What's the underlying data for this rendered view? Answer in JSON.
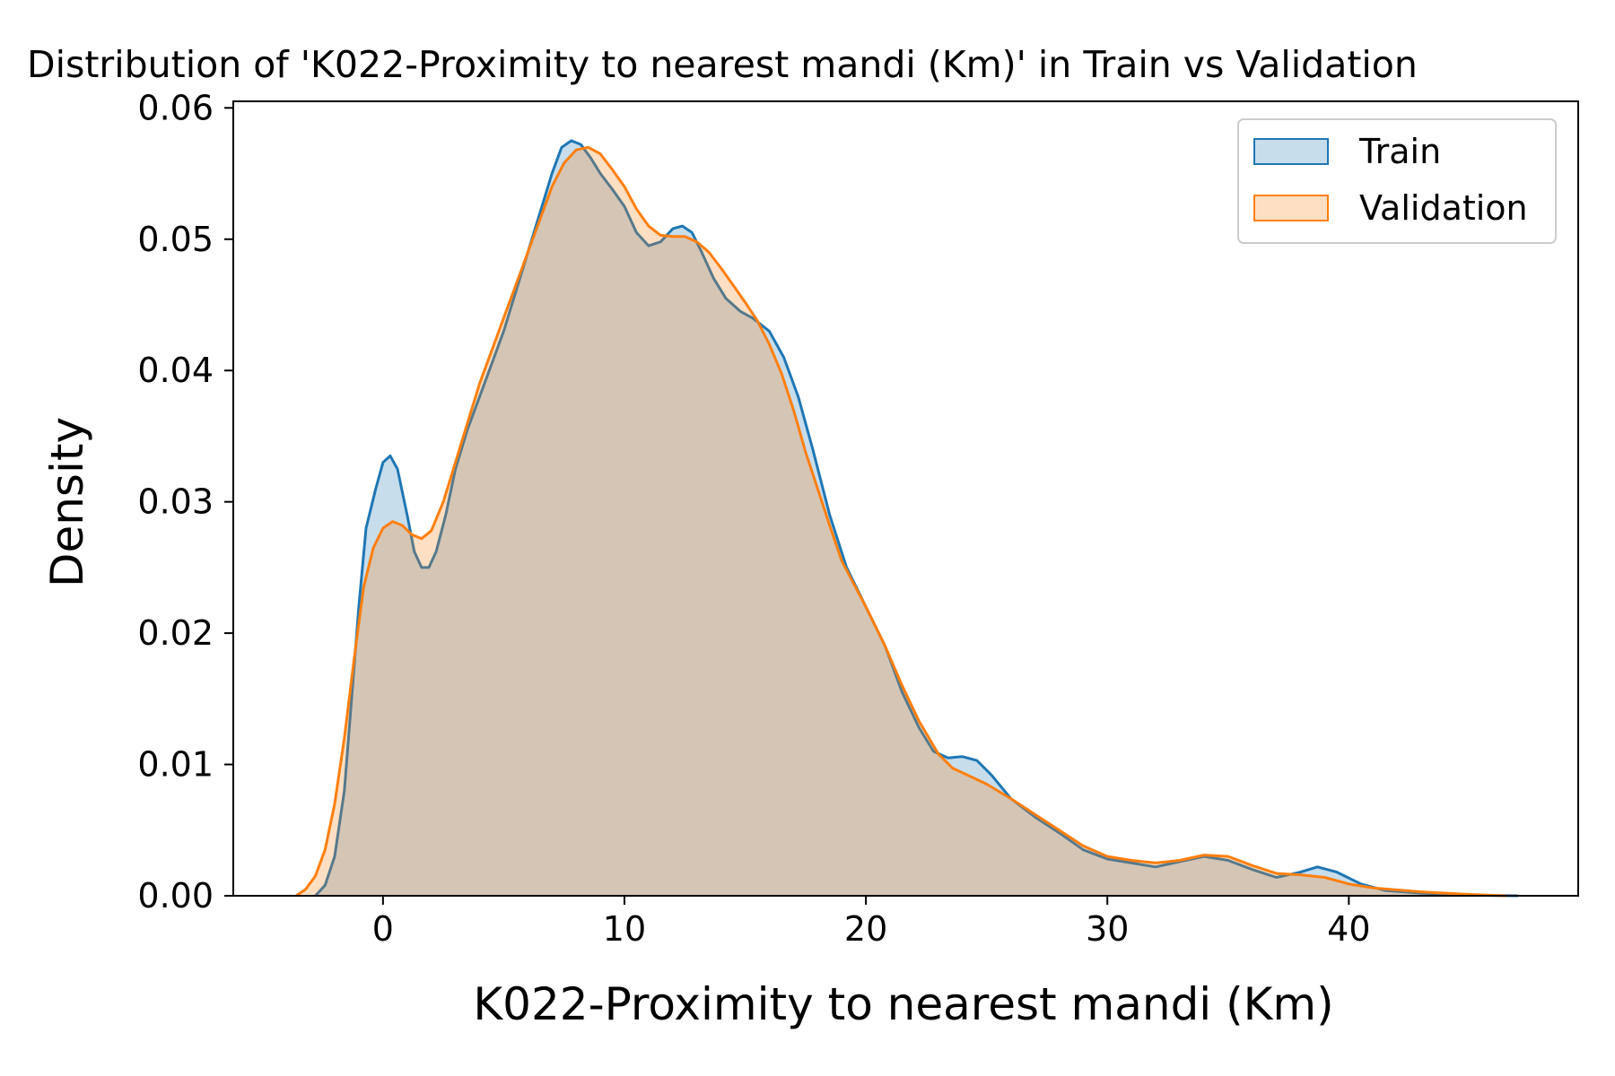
{
  "chart_data": {
    "type": "area",
    "title": "Distribution of 'K022-Proximity to nearest mandi (Km)' in Train vs Validation",
    "xlabel": "K022-Proximity to nearest mandi (Km)",
    "ylabel": "Density",
    "xlim": [
      -6.2,
      49.5
    ],
    "ylim": [
      0,
      0.0605
    ],
    "xticks": [
      0,
      10,
      20,
      30,
      40
    ],
    "xtick_labels": [
      "0",
      "10",
      "20",
      "30",
      "40"
    ],
    "yticks": [
      0,
      0.01,
      0.02,
      0.03,
      0.04,
      0.05,
      0.06
    ],
    "ytick_labels": [
      "0.00",
      "0.01",
      "0.02",
      "0.03",
      "0.04",
      "0.05",
      "0.06"
    ],
    "grid": false,
    "legend_position": "top-right",
    "series": [
      {
        "name": "Train",
        "color": "#1f77b4",
        "fill_opacity": 0.25,
        "points": [
          [
            -2.8,
            0.0
          ],
          [
            -2.4,
            0.0008
          ],
          [
            -2.0,
            0.003
          ],
          [
            -1.6,
            0.008
          ],
          [
            -1.3,
            0.015
          ],
          [
            -1.0,
            0.022
          ],
          [
            -0.7,
            0.028
          ],
          [
            -0.3,
            0.031
          ],
          [
            0.0,
            0.033
          ],
          [
            0.3,
            0.0335
          ],
          [
            0.6,
            0.0325
          ],
          [
            1.0,
            0.029
          ],
          [
            1.3,
            0.0262
          ],
          [
            1.6,
            0.025
          ],
          [
            1.9,
            0.025
          ],
          [
            2.2,
            0.0262
          ],
          [
            2.6,
            0.029
          ],
          [
            3.0,
            0.0325
          ],
          [
            3.5,
            0.0355
          ],
          [
            4.0,
            0.038
          ],
          [
            4.5,
            0.0405
          ],
          [
            5.0,
            0.043
          ],
          [
            5.5,
            0.046
          ],
          [
            6.0,
            0.049
          ],
          [
            6.5,
            0.052
          ],
          [
            7.0,
            0.055
          ],
          [
            7.4,
            0.057
          ],
          [
            7.8,
            0.0575
          ],
          [
            8.2,
            0.0572
          ],
          [
            8.6,
            0.0562
          ],
          [
            9.0,
            0.055
          ],
          [
            9.5,
            0.0538
          ],
          [
            10.0,
            0.0525
          ],
          [
            10.5,
            0.0505
          ],
          [
            11.0,
            0.0495
          ],
          [
            11.5,
            0.0498
          ],
          [
            12.0,
            0.0508
          ],
          [
            12.4,
            0.051
          ],
          [
            12.8,
            0.0505
          ],
          [
            13.2,
            0.049
          ],
          [
            13.7,
            0.047
          ],
          [
            14.2,
            0.0455
          ],
          [
            14.8,
            0.0445
          ],
          [
            15.3,
            0.044
          ],
          [
            16.0,
            0.043
          ],
          [
            16.6,
            0.041
          ],
          [
            17.2,
            0.038
          ],
          [
            17.8,
            0.034
          ],
          [
            18.5,
            0.029
          ],
          [
            19.2,
            0.025
          ],
          [
            20.0,
            0.022
          ],
          [
            20.8,
            0.019
          ],
          [
            21.5,
            0.0155
          ],
          [
            22.2,
            0.0128
          ],
          [
            22.8,
            0.011
          ],
          [
            23.4,
            0.0105
          ],
          [
            24.0,
            0.0106
          ],
          [
            24.6,
            0.0103
          ],
          [
            25.2,
            0.0092
          ],
          [
            26.0,
            0.0074
          ],
          [
            27.0,
            0.006
          ],
          [
            28.0,
            0.0048
          ],
          [
            29.0,
            0.0035
          ],
          [
            30.0,
            0.0028
          ],
          [
            31.0,
            0.0025
          ],
          [
            32.0,
            0.0022
          ],
          [
            33.0,
            0.0026
          ],
          [
            34.0,
            0.003
          ],
          [
            35.0,
            0.0027
          ],
          [
            36.0,
            0.002
          ],
          [
            37.0,
            0.0014
          ],
          [
            38.0,
            0.0018
          ],
          [
            38.7,
            0.0022
          ],
          [
            39.5,
            0.0018
          ],
          [
            40.5,
            0.0009
          ],
          [
            41.5,
            0.0004
          ],
          [
            43.0,
            0.0002
          ],
          [
            45.0,
            5e-05
          ],
          [
            47.0,
            0.0
          ]
        ]
      },
      {
        "name": "Validation",
        "color": "#ff7f0e",
        "fill_opacity": 0.25,
        "points": [
          [
            -3.6,
            0.0
          ],
          [
            -3.2,
            0.0005
          ],
          [
            -2.8,
            0.0015
          ],
          [
            -2.4,
            0.0035
          ],
          [
            -2.0,
            0.007
          ],
          [
            -1.6,
            0.012
          ],
          [
            -1.2,
            0.018
          ],
          [
            -0.8,
            0.0235
          ],
          [
            -0.4,
            0.0265
          ],
          [
            0.0,
            0.028
          ],
          [
            0.4,
            0.0285
          ],
          [
            0.8,
            0.0282
          ],
          [
            1.2,
            0.0275
          ],
          [
            1.6,
            0.0272
          ],
          [
            2.0,
            0.0278
          ],
          [
            2.5,
            0.03
          ],
          [
            3.0,
            0.033
          ],
          [
            3.5,
            0.036
          ],
          [
            4.0,
            0.039
          ],
          [
            4.5,
            0.0415
          ],
          [
            5.0,
            0.044
          ],
          [
            5.5,
            0.0465
          ],
          [
            6.0,
            0.049
          ],
          [
            6.5,
            0.0515
          ],
          [
            7.0,
            0.054
          ],
          [
            7.5,
            0.0558
          ],
          [
            8.0,
            0.0568
          ],
          [
            8.5,
            0.057
          ],
          [
            9.0,
            0.0565
          ],
          [
            9.5,
            0.0553
          ],
          [
            10.0,
            0.054
          ],
          [
            10.5,
            0.0523
          ],
          [
            11.0,
            0.051
          ],
          [
            11.5,
            0.0503
          ],
          [
            12.0,
            0.0502
          ],
          [
            12.5,
            0.0502
          ],
          [
            13.0,
            0.0498
          ],
          [
            13.5,
            0.049
          ],
          [
            14.0,
            0.0478
          ],
          [
            14.5,
            0.0465
          ],
          [
            15.0,
            0.0452
          ],
          [
            15.5,
            0.0438
          ],
          [
            16.0,
            0.042
          ],
          [
            16.5,
            0.0398
          ],
          [
            17.0,
            0.037
          ],
          [
            17.5,
            0.0338
          ],
          [
            18.0,
            0.031
          ],
          [
            18.5,
            0.0282
          ],
          [
            19.0,
            0.0255
          ],
          [
            20.0,
            0.022
          ],
          [
            20.8,
            0.019
          ],
          [
            21.5,
            0.016
          ],
          [
            22.2,
            0.0133
          ],
          [
            23.0,
            0.0108
          ],
          [
            23.6,
            0.0097
          ],
          [
            24.2,
            0.0092
          ],
          [
            25.0,
            0.0085
          ],
          [
            26.0,
            0.0074
          ],
          [
            27.0,
            0.0062
          ],
          [
            28.0,
            0.005
          ],
          [
            29.0,
            0.0038
          ],
          [
            30.0,
            0.003
          ],
          [
            31.0,
            0.0027
          ],
          [
            32.0,
            0.0025
          ],
          [
            33.0,
            0.0027
          ],
          [
            34.0,
            0.0031
          ],
          [
            35.0,
            0.003
          ],
          [
            36.0,
            0.0023
          ],
          [
            37.0,
            0.0017
          ],
          [
            38.0,
            0.0016
          ],
          [
            39.0,
            0.0014
          ],
          [
            40.0,
            0.0009
          ],
          [
            41.0,
            0.0006
          ],
          [
            43.0,
            0.0003
          ],
          [
            45.0,
            0.0001
          ],
          [
            46.5,
            0.0
          ]
        ]
      }
    ]
  }
}
